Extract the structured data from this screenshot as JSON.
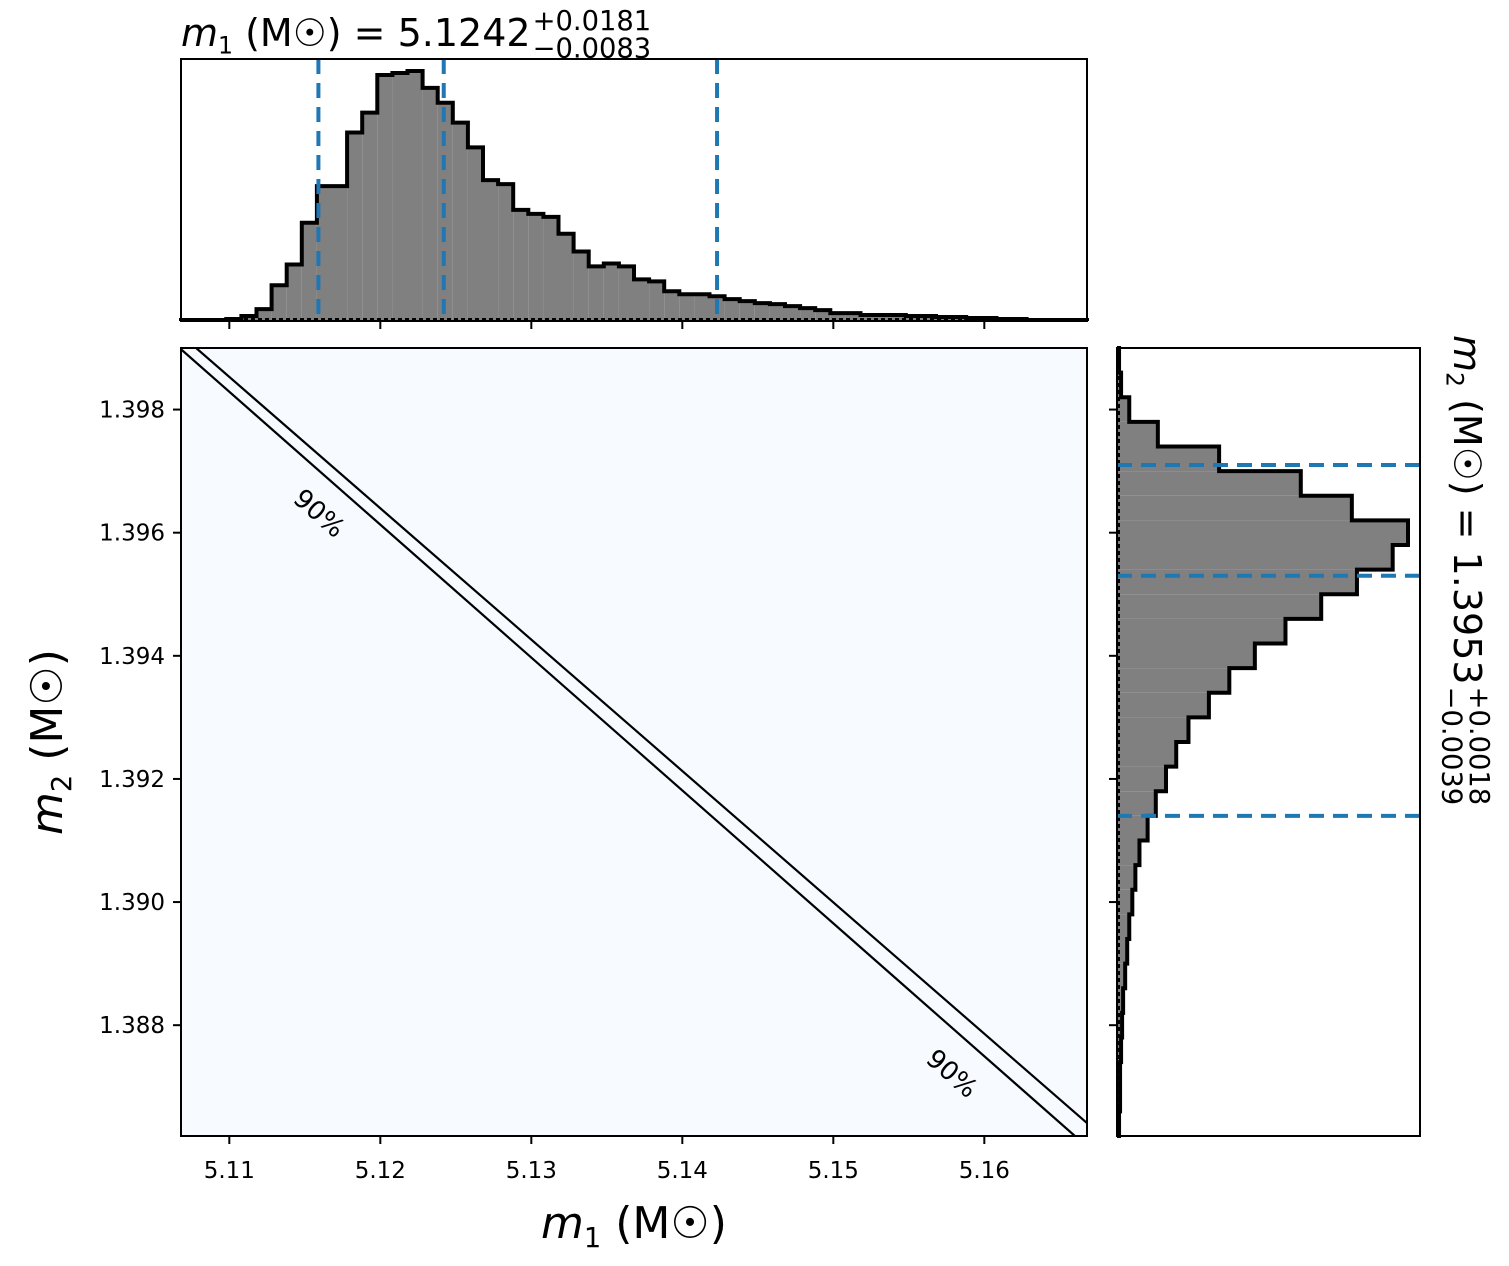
{
  "chart_data": [
    {
      "type": "histogram",
      "title": {
        "variable": "m",
        "subscript": "1",
        "text": " (M☉) = 5.1242",
        "upper": "+0.0181",
        "lower": "−0.0083"
      },
      "bins": [
        5.1068,
        5.1078,
        5.1088,
        5.1098,
        5.1108,
        5.1118,
        5.1128,
        5.1138,
        5.1148,
        5.1158,
        5.1168,
        5.1178,
        5.1188,
        5.1198,
        5.1208,
        5.1218,
        5.1228,
        5.1238,
        5.1248,
        5.1258,
        5.1268,
        5.1278,
        5.1288,
        5.1298,
        5.1308,
        5.1318,
        5.1328,
        5.1338,
        5.1348,
        5.1358,
        5.1368,
        5.1378,
        5.1388,
        5.1398,
        5.1408,
        5.1418,
        5.1428,
        5.1438,
        5.1448,
        5.1458,
        5.1468,
        5.1478,
        5.1488,
        5.1498,
        5.1508,
        5.1518,
        5.1528,
        5.1538,
        5.1548,
        5.1558,
        5.1568,
        5.1578,
        5.1588,
        5.1598,
        5.1608,
        5.1618,
        5.1628,
        5.1638,
        5.1648,
        5.1658,
        5.1668
      ],
      "counts": [
        1,
        1,
        1,
        2,
        5,
        12,
        36,
        57,
        99,
        136,
        136,
        190,
        210,
        248,
        250,
        252,
        235,
        220,
        200,
        175,
        142,
        138,
        112,
        108,
        105,
        88,
        70,
        55,
        58,
        55,
        42,
        40,
        30,
        27,
        27,
        25,
        22,
        20,
        18,
        17,
        15,
        13,
        11,
        8,
        8,
        6,
        6,
        6,
        5,
        5,
        4,
        4,
        3,
        3,
        2,
        2,
        1,
        1,
        1,
        1
      ],
      "color": "#808080",
      "quantiles": [
        5.1159,
        5.1242,
        5.1423
      ],
      "quantile_color": "#1f77b4",
      "xlim": [
        5.1068,
        5.1668
      ],
      "xticks": [
        5.11,
        5.12,
        5.13,
        5.14,
        5.15,
        5.16
      ]
    },
    {
      "type": "contour",
      "xlabel": {
        "variable": "m",
        "subscript": "1",
        "text": " (M☉)"
      },
      "ylabel": {
        "variable": "m",
        "subscript": "2",
        "text": " (M☉)"
      },
      "xlim": [
        5.1068,
        5.1668
      ],
      "ylim": [
        1.3862,
        1.399
      ],
      "xticks": [
        5.11,
        5.12,
        5.13,
        5.14,
        5.15,
        5.16
      ],
      "yticks": [
        1.398,
        1.396,
        1.394,
        1.392,
        {
          "value": 1.39,
          "label": "1.390"
        },
        1.388
      ],
      "background": "#f7fbff",
      "contours": [
        {
          "x": [
            5.1068,
            5.166
          ],
          "y": [
            1.39898,
            1.3862
          ]
        },
        {
          "x": [
            5.1078,
            5.1668
          ],
          "y": [
            1.399,
            1.38641
          ]
        }
      ],
      "contour_labels": [
        {
          "text": "90%",
          "x": 5.1159,
          "y": 1.3963
        },
        {
          "text": "90%",
          "x": 5.1578,
          "y": 1.3872
        }
      ]
    },
    {
      "type": "histogram",
      "orientation": "horizontal",
      "title": {
        "variable": "m",
        "subscript": "2",
        "text": " (M☉) = 1.3953",
        "upper": "+0.0018",
        "lower": "−0.0039"
      },
      "bins": [
        1.3862,
        1.3866,
        1.387,
        1.3874,
        1.3878,
        1.3882,
        1.3886,
        1.389,
        1.3894,
        1.3898,
        1.3902,
        1.3906,
        1.391,
        1.3914,
        1.3918,
        1.3922,
        1.3926,
        1.393,
        1.3934,
        1.3938,
        1.3942,
        1.3946,
        1.395,
        1.3954,
        1.3958,
        1.3962,
        1.3966,
        1.397,
        1.3974,
        1.3978,
        1.3982,
        1.3986,
        1.399
      ],
      "counts": [
        2,
        3,
        3,
        4,
        5,
        6,
        8,
        10,
        12,
        15,
        18,
        22,
        30,
        38,
        48,
        58,
        70,
        90,
        110,
        135,
        165,
        200,
        235,
        270,
        285,
        230,
        180,
        100,
        40,
        12,
        4,
        2
      ],
      "color": "#808080",
      "quantiles": [
        1.3914,
        1.3953,
        1.3971
      ],
      "quantile_color": "#1f77b4",
      "ylim": [
        1.3862,
        1.399
      ],
      "yticks": [
        1.398,
        1.396,
        1.394,
        1.392,
        {
          "value": 1.39,
          "label": "1.390"
        },
        1.388
      ]
    }
  ]
}
